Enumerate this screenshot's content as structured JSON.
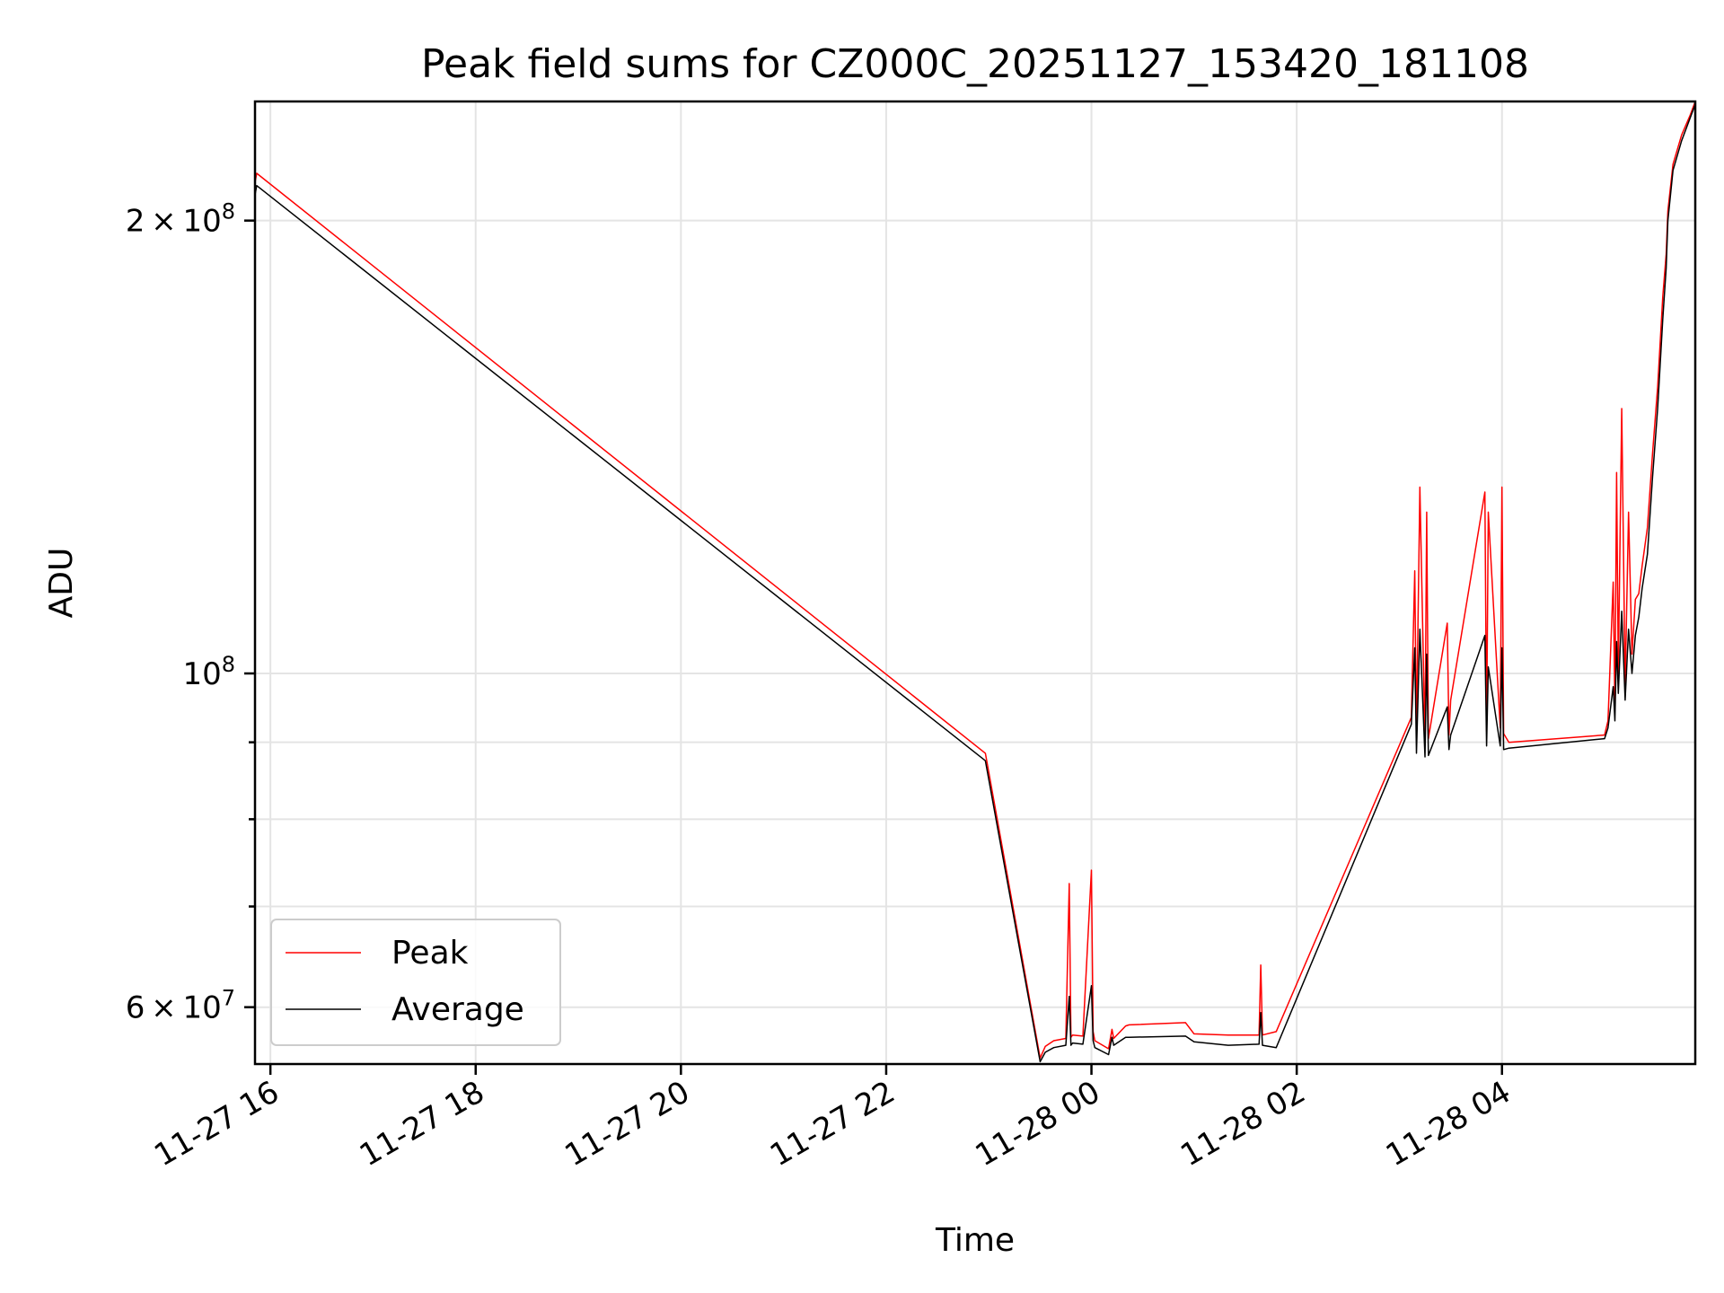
{
  "chart_data": {
    "type": "line",
    "title": "Peak field sums for CZ000C_20251127_153420_181108",
    "xlabel": "Time",
    "ylabel": "ADU",
    "yscale": "log",
    "xlim": [
      "2025-11-27 15:51",
      "2025-11-28 05:53"
    ],
    "ylim": [
      55000000,
      240000000
    ],
    "grid": true,
    "legend_position": "lower-left",
    "x_ticks": [
      {
        "value": "2025-11-27 16:00",
        "label": "11-27 16"
      },
      {
        "value": "2025-11-27 18:00",
        "label": "11-27 18"
      },
      {
        "value": "2025-11-27 20:00",
        "label": "11-27 20"
      },
      {
        "value": "2025-11-27 22:00",
        "label": "11-27 22"
      },
      {
        "value": "2025-11-28 00:00",
        "label": "11-28 00"
      },
      {
        "value": "2025-11-28 02:00",
        "label": "11-28 02"
      },
      {
        "value": "2025-11-28 04:00",
        "label": "11-28 04"
      }
    ],
    "y_major_ticks": [
      {
        "value": 60000000,
        "mantissa": "6",
        "exp": "7"
      },
      {
        "value": 100000000,
        "mantissa": "",
        "exp": "8"
      },
      {
        "value": 200000000,
        "mantissa": "2",
        "exp": "8"
      }
    ],
    "y_minor_grid": [
      70000000,
      80000000,
      90000000
    ],
    "series": [
      {
        "name": "Peak",
        "color": "#ff0000",
        "x": [
          "2025-11-27 15:51",
          "2025-11-27 15:52",
          "2025-11-27 22:58",
          "2025-11-27 23:30",
          "2025-11-27 23:33",
          "2025-11-27 23:38",
          "2025-11-27 23:45",
          "2025-11-27 23:47",
          "2025-11-27 23:48",
          "2025-11-27 23:49",
          "2025-11-27 23:55",
          "2025-11-28 00:00",
          "2025-11-28 00:01",
          "2025-11-28 00:02",
          "2025-11-28 00:10",
          "2025-11-28 00:12",
          "2025-11-28 00:13",
          "2025-11-28 00:20",
          "2025-11-28 00:22",
          "2025-11-28 00:55",
          "2025-11-28 01:00",
          "2025-11-28 01:20",
          "2025-11-28 01:38",
          "2025-11-28 01:39",
          "2025-11-28 01:40",
          "2025-11-28 01:48",
          "2025-11-28 03:07",
          "2025-11-28 03:09",
          "2025-11-28 03:10",
          "2025-11-28 03:12",
          "2025-11-28 03:15",
          "2025-11-28 03:16",
          "2025-11-28 03:17",
          "2025-11-28 03:28",
          "2025-11-28 03:29",
          "2025-11-28 03:30",
          "2025-11-28 03:50",
          "2025-11-28 03:51",
          "2025-11-28 03:52",
          "2025-11-28 03:59",
          "2025-11-28 04:00",
          "2025-11-28 04:01",
          "2025-11-28 04:04",
          "2025-11-28 05:00",
          "2025-11-28 05:02",
          "2025-11-28 05:05",
          "2025-11-28 05:06",
          "2025-11-28 05:07",
          "2025-11-28 05:08",
          "2025-11-28 05:10",
          "2025-11-28 05:12",
          "2025-11-28 05:14",
          "2025-11-28 05:16",
          "2025-11-28 05:18",
          "2025-11-28 05:20",
          "2025-11-28 05:22",
          "2025-11-28 05:25",
          "2025-11-28 05:28",
          "2025-11-28 05:31",
          "2025-11-28 05:34",
          "2025-11-28 05:36",
          "2025-11-28 05:37",
          "2025-11-28 05:40",
          "2025-11-28 05:45",
          "2025-11-28 05:50",
          "2025-11-28 05:53"
        ],
        "values": [
          212000000,
          215000000,
          88500000,
          55500000,
          56500000,
          57000000,
          57200000,
          72500000,
          57300000,
          57500000,
          57400000,
          74000000,
          57800000,
          57000000,
          56300000,
          58000000,
          57200000,
          58300000,
          58400000,
          58600000,
          57600000,
          57500000,
          57500000,
          64000000,
          57500000,
          57800000,
          93500000,
          117000000,
          91000000,
          133000000,
          90000000,
          128000000,
          90500000,
          108000000,
          91000000,
          96000000,
          132000000,
          91500000,
          128000000,
          92000000,
          133000000,
          91200000,
          90000000,
          91000000,
          93000000,
          115000000,
          95000000,
          136000000,
          100000000,
          150000000,
          98000000,
          128000000,
          103000000,
          112000000,
          113000000,
          118000000,
          125000000,
          140000000,
          155000000,
          178000000,
          190000000,
          203000000,
          218000000,
          228000000,
          235000000,
          240000000
        ]
      },
      {
        "name": "Average",
        "color": "#000000",
        "x": [
          "2025-11-27 15:51",
          "2025-11-27 15:52",
          "2025-11-27 22:58",
          "2025-11-27 23:30",
          "2025-11-27 23:33",
          "2025-11-27 23:38",
          "2025-11-27 23:45",
          "2025-11-27 23:47",
          "2025-11-27 23:48",
          "2025-11-27 23:49",
          "2025-11-27 23:55",
          "2025-11-28 00:00",
          "2025-11-28 00:01",
          "2025-11-28 00:02",
          "2025-11-28 00:10",
          "2025-11-28 00:12",
          "2025-11-28 00:13",
          "2025-11-28 00:20",
          "2025-11-28 00:22",
          "2025-11-28 00:55",
          "2025-11-28 01:00",
          "2025-11-28 01:20",
          "2025-11-28 01:38",
          "2025-11-28 01:39",
          "2025-11-28 01:40",
          "2025-11-28 01:48",
          "2025-11-28 03:07",
          "2025-11-28 03:09",
          "2025-11-28 03:10",
          "2025-11-28 03:12",
          "2025-11-28 03:15",
          "2025-11-28 03:16",
          "2025-11-28 03:17",
          "2025-11-28 03:28",
          "2025-11-28 03:29",
          "2025-11-28 03:30",
          "2025-11-28 03:50",
          "2025-11-28 03:51",
          "2025-11-28 03:52",
          "2025-11-28 03:59",
          "2025-11-28 04:00",
          "2025-11-28 04:01",
          "2025-11-28 04:04",
          "2025-11-28 05:00",
          "2025-11-28 05:02",
          "2025-11-28 05:05",
          "2025-11-28 05:06",
          "2025-11-28 05:07",
          "2025-11-28 05:08",
          "2025-11-28 05:10",
          "2025-11-28 05:12",
          "2025-11-28 05:14",
          "2025-11-28 05:16",
          "2025-11-28 05:18",
          "2025-11-28 05:20",
          "2025-11-28 05:22",
          "2025-11-28 05:25",
          "2025-11-28 05:28",
          "2025-11-28 05:31",
          "2025-11-28 05:34",
          "2025-11-28 05:36",
          "2025-11-28 05:37",
          "2025-11-28 05:40",
          "2025-11-28 05:45",
          "2025-11-28 05:50",
          "2025-11-28 05:53"
        ],
        "values": [
          208000000,
          211000000,
          87500000,
          55200000,
          56000000,
          56400000,
          56600000,
          61000000,
          56600000,
          56800000,
          56700000,
          62000000,
          57000000,
          56400000,
          55800000,
          57300000,
          56600000,
          57300000,
          57300000,
          57400000,
          56900000,
          56600000,
          56700000,
          59500000,
          56600000,
          56400000,
          92500000,
          104000000,
          88500000,
          107000000,
          88000000,
          103000000,
          88200000,
          95000000,
          89000000,
          91000000,
          106000000,
          89500000,
          101000000,
          89500000,
          104000000,
          89000000,
          89200000,
          90500000,
          92000000,
          98000000,
          93000000,
          105000000,
          97000000,
          110000000,
          96000000,
          107000000,
          100000000,
          106000000,
          109000000,
          114000000,
          120000000,
          135000000,
          150000000,
          172000000,
          186000000,
          200000000,
          216000000,
          226000000,
          234000000,
          239000000
        ]
      }
    ]
  }
}
